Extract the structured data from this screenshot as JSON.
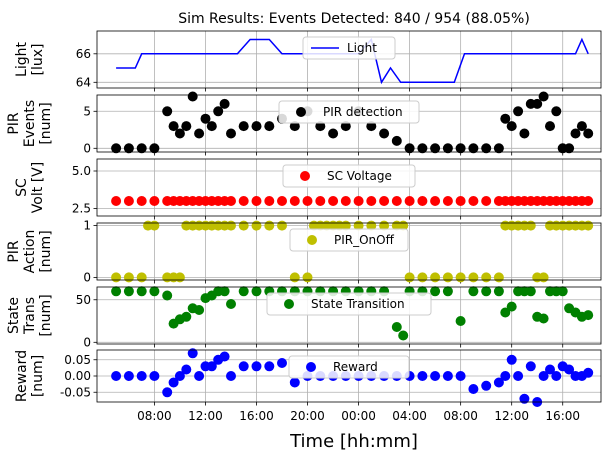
{
  "chart_data": {
    "type": "stacked-subplots",
    "title": "Sim Results: Events Detected: 840 / 954 (88.05%)",
    "xlabel": "Time [hh:mm]",
    "x_tick_labels": [
      "08:00",
      "12:00",
      "16:00",
      "20:00",
      "00:00",
      "04:00",
      "08:00",
      "12:00",
      "16:00"
    ],
    "x_tick_hours": [
      8,
      12,
      16,
      20,
      24,
      28,
      32,
      36,
      40
    ],
    "x_range_hours": [
      3.5,
      43.0
    ],
    "grid": true,
    "subplots": [
      {
        "type": "line",
        "ylabel": "Light\n[lux]",
        "ylim": [
          63.6,
          67.6
        ],
        "yticks": [
          64,
          66
        ],
        "ytick_labels": [
          "64",
          "66"
        ],
        "legend": "Light",
        "legend_position": "upper center",
        "color": "#0000ff",
        "x": [
          5.0,
          6.5,
          7.0,
          14.5,
          15.5,
          17.0,
          18.0,
          24.0,
          25.0,
          25.8,
          26.5,
          27.3,
          31.5,
          32.3,
          37.0,
          38.0,
          41.0,
          41.5,
          42.0
        ],
        "y": [
          65,
          65,
          66,
          66,
          67,
          67,
          66,
          66,
          67,
          64,
          65,
          64,
          64,
          66,
          66,
          66,
          66,
          67,
          66
        ]
      },
      {
        "type": "scatter",
        "ylabel": "PIR\nEvents\n[num]",
        "ylim": [
          -0.5,
          7.2
        ],
        "yticks": [
          0,
          5
        ],
        "ytick_labels": [
          "0",
          "5"
        ],
        "legend": "PIR detection",
        "legend_position": "upper center",
        "color": "#000000",
        "x": [
          5.0,
          6.0,
          7.0,
          8.0,
          9.0,
          9.5,
          10.0,
          10.5,
          11.0,
          11.5,
          12.0,
          12.5,
          13.0,
          13.5,
          14.0,
          15.0,
          16.0,
          17.0,
          18.0,
          19.0,
          20.0,
          21.0,
          22.0,
          23.0,
          24.0,
          25.0,
          26.0,
          27.0,
          28.0,
          29.0,
          30.0,
          31.0,
          32.0,
          33.0,
          34.0,
          35.0,
          35.5,
          36.0,
          36.5,
          37.0,
          37.5,
          38.0,
          38.5,
          39.0,
          39.5,
          40.0,
          40.5,
          41.0,
          41.5,
          42.0
        ],
        "y": [
          0,
          0,
          0,
          0,
          5,
          3,
          2,
          3,
          7,
          2,
          4,
          3,
          5,
          6,
          2,
          3,
          3,
          3,
          4,
          3,
          5,
          3,
          2,
          3,
          5,
          3,
          2,
          1,
          0,
          0,
          0,
          0,
          0,
          0,
          0,
          0,
          4,
          3,
          5,
          2,
          6,
          6,
          7,
          3,
          5,
          0,
          0,
          2,
          3,
          2
        ]
      },
      {
        "type": "scatter",
        "ylabel": "SC\nVolt [V]",
        "ylim": [
          2.0,
          5.8
        ],
        "yticks": [
          2.5,
          5.0
        ],
        "ytick_labels": [
          "2.5",
          "5.0"
        ],
        "legend": "SC Voltage",
        "legend_position": "upper center",
        "color": "#ff0000",
        "x": [
          5.0,
          6.0,
          7.0,
          8.0,
          9.0,
          9.5,
          10.0,
          10.5,
          11.0,
          11.5,
          12.0,
          12.5,
          13.0,
          13.5,
          14.0,
          15.0,
          16.0,
          17.0,
          18.0,
          19.0,
          20.0,
          21.0,
          22.0,
          23.0,
          24.0,
          25.0,
          26.0,
          27.0,
          28.0,
          29.0,
          30.0,
          31.0,
          32.0,
          33.0,
          34.0,
          35.0,
          35.5,
          36.0,
          36.5,
          37.0,
          37.5,
          38.0,
          38.5,
          39.0,
          39.5,
          40.0,
          40.5,
          41.0,
          41.5,
          42.0
        ],
        "y": [
          3.0,
          3.0,
          3.0,
          3.0,
          3.0,
          3.0,
          3.0,
          3.0,
          3.0,
          3.0,
          3.0,
          3.0,
          3.0,
          3.0,
          3.0,
          3.0,
          3.0,
          3.0,
          3.0,
          3.0,
          3.0,
          3.0,
          3.0,
          3.0,
          3.0,
          3.0,
          3.0,
          3.0,
          3.0,
          3.0,
          3.0,
          3.0,
          3.0,
          3.0,
          3.0,
          3.0,
          3.0,
          3.0,
          3.0,
          3.0,
          3.0,
          3.0,
          3.0,
          3.0,
          3.0,
          3.0,
          3.0,
          3.0,
          3.0,
          3.0
        ]
      },
      {
        "type": "scatter",
        "ylabel": "PIR\nAction\n[num]",
        "ylim": [
          -0.05,
          1.05
        ],
        "yticks": [
          0,
          1
        ],
        "ytick_labels": [
          "0",
          "1"
        ],
        "legend": "PIR_OnOff",
        "legend_position": "upper center",
        "color": "#bfbf00",
        "x": [
          5.0,
          6.0,
          7.0,
          7.5,
          8.0,
          9.0,
          9.5,
          10.0,
          10.5,
          11.0,
          11.5,
          12.0,
          12.5,
          13.0,
          13.5,
          14.0,
          15.0,
          16.0,
          17.0,
          18.0,
          19.0,
          20.0,
          20.5,
          21.0,
          21.5,
          22.0,
          22.5,
          23.0,
          24.0,
          25.0,
          26.0,
          27.0,
          27.5,
          28.0,
          29.0,
          30.0,
          31.0,
          32.0,
          33.0,
          34.0,
          35.0,
          35.5,
          36.0,
          36.5,
          37.0,
          37.5,
          38.0,
          38.5,
          39.0,
          39.5,
          40.0,
          40.5,
          41.0,
          41.5,
          42.0
        ],
        "y": [
          0,
          0,
          0,
          1,
          1,
          0,
          0,
          0,
          1,
          1,
          1,
          1,
          1,
          1,
          1,
          1,
          1,
          1,
          1,
          1,
          0,
          0,
          1,
          1,
          1,
          1,
          1,
          1,
          1,
          1,
          1,
          1,
          1,
          0,
          0,
          0,
          0,
          0,
          0,
          0,
          0,
          1,
          1,
          1,
          1,
          1,
          0,
          0,
          1,
          1,
          1,
          1,
          1,
          1,
          1
        ]
      },
      {
        "type": "scatter",
        "ylabel": "State\nTrans\n[num]",
        "ylim": [
          -2,
          65
        ],
        "yticks": [
          0,
          50
        ],
        "ytick_labels": [
          "0",
          "50"
        ],
        "legend": "State Transition",
        "legend_position": "upper center",
        "color": "#008000",
        "x": [
          5.0,
          6.0,
          7.0,
          8.0,
          9.0,
          9.5,
          10.0,
          10.5,
          11.0,
          11.5,
          12.0,
          12.5,
          13.0,
          13.5,
          14.0,
          15.0,
          16.0,
          17.0,
          18.0,
          19.0,
          20.0,
          21.0,
          22.0,
          23.0,
          24.0,
          25.0,
          26.0,
          27.0,
          27.5,
          28.0,
          29.0,
          30.0,
          31.0,
          32.0,
          33.0,
          34.0,
          35.0,
          35.5,
          36.0,
          36.5,
          37.0,
          37.5,
          38.0,
          38.5,
          39.0,
          39.5,
          40.0,
          40.5,
          41.0,
          41.5,
          42.0
        ],
        "y": [
          60,
          60,
          60,
          60,
          55,
          22,
          27,
          30,
          40,
          38,
          52,
          55,
          60,
          60,
          45,
          60,
          60,
          60,
          60,
          60,
          60,
          60,
          60,
          60,
          60,
          60,
          60,
          18,
          8,
          60,
          60,
          60,
          60,
          25,
          60,
          60,
          60,
          35,
          42,
          60,
          60,
          60,
          30,
          28,
          60,
          60,
          60,
          40,
          35,
          30,
          32
        ]
      },
      {
        "type": "scatter",
        "ylabel": "Reward\n[num]",
        "ylim": [
          -0.08,
          0.08
        ],
        "yticks": [
          0.05,
          0.0,
          -0.05
        ],
        "ytick_labels": [
          "0.05",
          "0.00",
          "-0.05"
        ],
        "legend": "Reward",
        "legend_position": "upper center",
        "color": "#0000ff",
        "x": [
          5.0,
          6.0,
          7.0,
          8.0,
          9.0,
          9.5,
          10.0,
          10.5,
          11.0,
          11.5,
          12.0,
          12.5,
          13.0,
          13.5,
          14.0,
          15.0,
          16.0,
          17.0,
          18.0,
          19.0,
          20.0,
          21.0,
          22.0,
          23.0,
          24.0,
          25.0,
          26.0,
          27.0,
          28.0,
          29.0,
          30.0,
          31.0,
          32.0,
          33.0,
          34.0,
          35.0,
          35.5,
          36.0,
          36.5,
          37.0,
          37.5,
          38.0,
          38.5,
          39.0,
          39.5,
          40.0,
          40.5,
          41.0,
          41.5,
          42.0
        ],
        "y": [
          0.0,
          0.0,
          0.0,
          0.0,
          -0.05,
          -0.02,
          0.0,
          0.02,
          0.07,
          0.0,
          0.03,
          0.03,
          0.05,
          0.06,
          0.0,
          0.03,
          0.03,
          0.03,
          0.04,
          -0.02,
          0.0,
          0.0,
          0.0,
          0.0,
          0.0,
          0.0,
          0.0,
          0.0,
          0.0,
          0.0,
          0.0,
          0.0,
          0.0,
          -0.04,
          -0.03,
          -0.02,
          0.0,
          0.05,
          0.0,
          -0.07,
          0.03,
          -0.08,
          0.0,
          0.02,
          0.0,
          0.03,
          0.02,
          0.0,
          0.0,
          0.01
        ]
      }
    ]
  }
}
